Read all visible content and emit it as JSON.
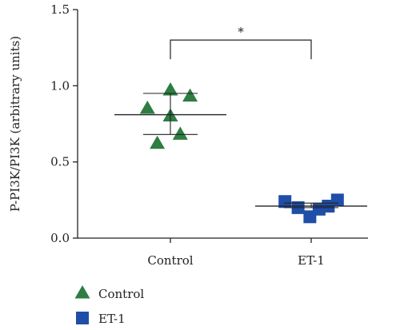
{
  "chart_data": {
    "type": "scatter",
    "ylabel": "P-PI3K/PI3K (arbitrary units)",
    "xlabel": "",
    "ylim": [
      0,
      1.5
    ],
    "yticks": [
      "0.0",
      "0.5",
      "1.0",
      "1.5"
    ],
    "ytick_values": [
      0,
      0.5,
      1.0,
      1.5
    ],
    "categories": [
      "Control",
      "ET-1"
    ],
    "series": [
      {
        "name": "Control",
        "color": "#2e7d43",
        "marker": "triangle",
        "category_index": 0,
        "points": [
          {
            "x_offset": -0.35,
            "y": 0.85
          },
          {
            "x_offset": -0.2,
            "y": 0.62
          },
          {
            "x_offset": 0.0,
            "y": 0.97
          },
          {
            "x_offset": 0.0,
            "y": 0.8
          },
          {
            "x_offset": 0.15,
            "y": 0.68
          },
          {
            "x_offset": 0.3,
            "y": 0.93
          }
        ],
        "mean": 0.81,
        "sd_low": 0.68,
        "sd_high": 0.95
      },
      {
        "name": "ET-1",
        "color": "#1f4ea8",
        "marker": "square",
        "category_index": 1,
        "points": [
          {
            "x_offset": -0.4,
            "y": 0.24
          },
          {
            "x_offset": -0.2,
            "y": 0.2
          },
          {
            "x_offset": -0.02,
            "y": 0.14
          },
          {
            "x_offset": 0.12,
            "y": 0.19
          },
          {
            "x_offset": 0.26,
            "y": 0.21
          },
          {
            "x_offset": 0.4,
            "y": 0.25
          }
        ],
        "mean": 0.21,
        "sd_low": 0.2,
        "sd_high": 0.23
      }
    ],
    "significance": {
      "label": "*",
      "from": 0,
      "to": 1,
      "y": 1.3
    },
    "legend": {
      "placement": "bottom-left",
      "entries": [
        "Control",
        "ET-1"
      ]
    }
  }
}
